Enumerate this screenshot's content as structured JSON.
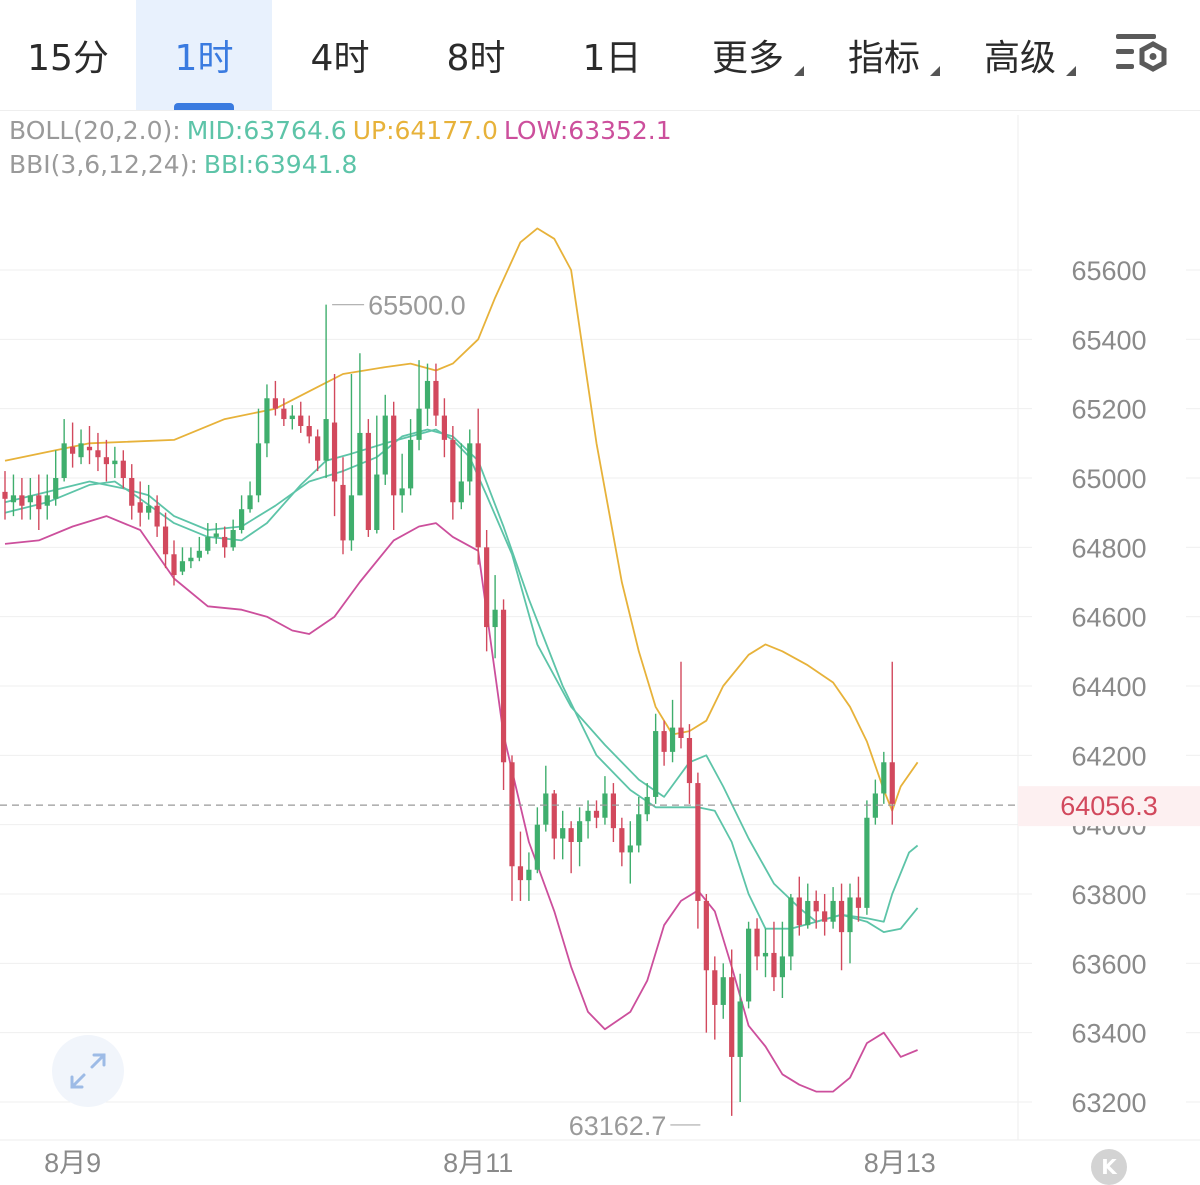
{
  "tabs": [
    {
      "label": "15分"
    },
    {
      "label": "1时"
    },
    {
      "label": "4时"
    },
    {
      "label": "8时"
    },
    {
      "label": "1日"
    },
    {
      "label": "更多"
    },
    {
      "label": "指标"
    },
    {
      "label": "高级"
    }
  ],
  "active_tab": "1时",
  "indicators": {
    "boll": {
      "name": "BOLL(20,2.0):",
      "mid": "MID:63764.6",
      "up": "UP:64177.0",
      "low": "LOW:63352.1"
    },
    "bbi": {
      "name": "BBI(3,6,12,24):",
      "bbi": "BBI:63941.8"
    }
  },
  "colors": {
    "up_candle": "#3fae6d",
    "down_candle": "#d2495d",
    "boll_up": "#e7b23a",
    "boll_mid": "#5dc4a8",
    "boll_low": "#cc4f9c",
    "bbi": "#5dc4a8",
    "active_tab": "#3a7be0",
    "price_line": "#999999"
  },
  "icons": {
    "settings": "settings-gear-icon",
    "expand": "expand-arrows-icon",
    "scroll_back": "scroll-left-icon"
  },
  "chart_data": {
    "type": "candlestick",
    "y_ticks": [
      63200,
      63400,
      63600,
      63800,
      64000,
      64200,
      64400,
      64600,
      64800,
      65000,
      65200,
      65400,
      65600
    ],
    "y_tick_labels": [
      "63200",
      "63400",
      "63600",
      "63800",
      "64000",
      "64200",
      "64400",
      "64600",
      "64800",
      "65000",
      "65200",
      "65400",
      "65600"
    ],
    "ylim": [
      63060,
      65850
    ],
    "x_labels": [
      {
        "label": "8月9",
        "index": 8
      },
      {
        "label": "8月11",
        "index": 56
      },
      {
        "label": "8月13",
        "index": 104
      }
    ],
    "current_price": 64056.3,
    "current_price_label": "64056.3",
    "high_marker": {
      "label": "65500.0",
      "value": 65500,
      "index": 38
    },
    "low_marker": {
      "label": "63162.7",
      "value": 63162.7,
      "index": 83
    },
    "candles": [
      [
        64960,
        64940,
        65020,
        64880
      ],
      [
        64930,
        64950,
        65010,
        64890
      ],
      [
        64950,
        64920,
        65000,
        64880
      ],
      [
        64930,
        64950,
        65000,
        64880
      ],
      [
        64950,
        64910,
        65010,
        64850
      ],
      [
        64920,
        64950,
        65010,
        64880
      ],
      [
        64940,
        65000,
        65080,
        64920
      ],
      [
        65000,
        65100,
        65170,
        64990
      ],
      [
        65090,
        65070,
        65160,
        65030
      ],
      [
        65060,
        65100,
        65140,
        65040
      ],
      [
        65090,
        65080,
        65150,
        65040
      ],
      [
        65080,
        65060,
        65130,
        65020
      ],
      [
        65060,
        65040,
        65110,
        64990
      ],
      [
        65040,
        65050,
        65090,
        65000
      ],
      [
        65050,
        65000,
        65080,
        64970
      ],
      [
        65000,
        64920,
        65040,
        64880
      ],
      [
        64930,
        64900,
        64990,
        64860
      ],
      [
        64900,
        64920,
        64980,
        64880
      ],
      [
        64920,
        64860,
        64950,
        64830
      ],
      [
        64860,
        64780,
        64900,
        64740
      ],
      [
        64780,
        64720,
        64820,
        64690
      ],
      [
        64730,
        64760,
        64800,
        64720
      ],
      [
        64760,
        64770,
        64800,
        64740
      ],
      [
        64770,
        64790,
        64830,
        64760
      ],
      [
        64790,
        64830,
        64870,
        64780
      ],
      [
        64830,
        64840,
        64870,
        64810
      ],
      [
        64830,
        64800,
        64860,
        64770
      ],
      [
        64800,
        64850,
        64880,
        64790
      ],
      [
        64850,
        64910,
        64950,
        64840
      ],
      [
        64910,
        64950,
        64990,
        64900
      ],
      [
        64950,
        65100,
        65200,
        64930
      ],
      [
        65100,
        65230,
        65270,
        65060
      ],
      [
        65230,
        65200,
        65280,
        65180
      ],
      [
        65200,
        65170,
        65230,
        65150
      ],
      [
        65170,
        65180,
        65210,
        65140
      ],
      [
        65180,
        65150,
        65220,
        65130
      ],
      [
        65150,
        65120,
        65180,
        65100
      ],
      [
        65120,
        65050,
        65140,
        65020
      ],
      [
        65050,
        65170,
        65500,
        65000
      ],
      [
        65160,
        64990,
        65300,
        64890
      ],
      [
        64980,
        64820,
        65060,
        64780
      ],
      [
        64820,
        64950,
        65300,
        64790
      ],
      [
        64950,
        65130,
        65360,
        64950
      ],
      [
        65130,
        64850,
        65170,
        64830
      ],
      [
        64850,
        65010,
        65180,
        64840
      ],
      [
        65010,
        65180,
        65240,
        64980
      ],
      [
        65180,
        64950,
        65220,
        64850
      ],
      [
        64950,
        64970,
        65070,
        64900
      ],
      [
        64970,
        65110,
        65170,
        64950
      ],
      [
        65110,
        65200,
        65340,
        65080
      ],
      [
        65200,
        65280,
        65330,
        65150
      ],
      [
        65280,
        65180,
        65330,
        65150
      ],
      [
        65180,
        65110,
        65230,
        65060
      ],
      [
        65110,
        64930,
        65150,
        64880
      ],
      [
        64930,
        64990,
        65100,
        64910
      ],
      [
        64990,
        65100,
        65140,
        64950
      ],
      [
        65100,
        64800,
        65200,
        64750
      ],
      [
        64800,
        64570,
        64850,
        64500
      ],
      [
        64570,
        64620,
        64720,
        64480
      ],
      [
        64620,
        64180,
        64650,
        64100
      ],
      [
        64180,
        63880,
        64200,
        63780
      ],
      [
        63880,
        63840,
        63980,
        63780
      ],
      [
        63840,
        63870,
        63920,
        63780
      ],
      [
        63870,
        64000,
        64050,
        63860
      ],
      [
        64000,
        64090,
        64170,
        63980
      ],
      [
        64090,
        63960,
        64100,
        63900
      ],
      [
        63960,
        63990,
        64040,
        63900
      ],
      [
        63990,
        63950,
        64010,
        63860
      ],
      [
        63950,
        64010,
        64050,
        63880
      ],
      [
        64010,
        64040,
        64070,
        63960
      ],
      [
        64040,
        64020,
        64070,
        63990
      ],
      [
        64020,
        64090,
        64140,
        64000
      ],
      [
        64090,
        63990,
        64120,
        63950
      ],
      [
        63990,
        63920,
        64020,
        63880
      ],
      [
        63920,
        63940,
        64010,
        63830
      ],
      [
        63940,
        64030,
        64080,
        63920
      ],
      [
        64030,
        64080,
        64120,
        64010
      ],
      [
        64080,
        64270,
        64320,
        64060
      ],
      [
        64270,
        64210,
        64300,
        64170
      ],
      [
        64210,
        64280,
        64360,
        64180
      ],
      [
        64280,
        64250,
        64470,
        64220
      ],
      [
        64250,
        64120,
        64290,
        64060
      ],
      [
        64120,
        63780,
        64150,
        63700
      ],
      [
        63780,
        63580,
        63800,
        63400
      ],
      [
        63580,
        63480,
        63620,
        63380
      ],
      [
        63480,
        63560,
        63600,
        63440
      ],
      [
        63560,
        63330,
        63640,
        63160
      ],
      [
        63330,
        63490,
        63570,
        63200
      ],
      [
        63490,
        63700,
        63720,
        63470
      ],
      [
        63700,
        63620,
        63730,
        63580
      ],
      [
        63620,
        63630,
        63700,
        63560
      ],
      [
        63630,
        63560,
        63720,
        63520
      ],
      [
        63560,
        63620,
        63720,
        63500
      ],
      [
        63620,
        63790,
        63800,
        63580
      ],
      [
        63790,
        63710,
        63850,
        63680
      ],
      [
        63710,
        63780,
        63830,
        63700
      ],
      [
        63780,
        63750,
        63810,
        63700
      ],
      [
        63750,
        63720,
        63800,
        63680
      ],
      [
        63720,
        63780,
        63820,
        63700
      ],
      [
        63780,
        63690,
        63830,
        63580
      ],
      [
        63690,
        63790,
        63830,
        63600
      ],
      [
        63790,
        63760,
        63850,
        63720
      ],
      [
        63760,
        64020,
        64070,
        63740
      ],
      [
        64020,
        64090,
        64130,
        64000
      ],
      [
        64090,
        64180,
        64210,
        64060
      ],
      [
        64180,
        64060,
        64470,
        64000
      ]
    ],
    "series": [
      {
        "name": "UP",
        "points": [
          [
            0,
            65050
          ],
          [
            10,
            65100
          ],
          [
            20,
            65110
          ],
          [
            26,
            65170
          ],
          [
            32,
            65200
          ],
          [
            36,
            65250
          ],
          [
            40,
            65300
          ],
          [
            45,
            65320
          ],
          [
            48,
            65330
          ],
          [
            51,
            65310
          ],
          [
            53,
            65330
          ],
          [
            56,
            65400
          ],
          [
            58,
            65520
          ],
          [
            61,
            65680
          ],
          [
            63,
            65720
          ],
          [
            65,
            65690
          ],
          [
            67,
            65600
          ],
          [
            70,
            65100
          ],
          [
            73,
            64700
          ],
          [
            75,
            64500
          ],
          [
            77,
            64340
          ],
          [
            79,
            64260
          ],
          [
            81,
            64270
          ],
          [
            83,
            64300
          ],
          [
            85,
            64400
          ],
          [
            88,
            64490
          ],
          [
            90,
            64520
          ],
          [
            92,
            64500
          ],
          [
            95,
            64460
          ],
          [
            98,
            64410
          ],
          [
            100,
            64340
          ],
          [
            102,
            64240
          ],
          [
            104,
            64100
          ],
          [
            105,
            64040
          ],
          [
            106,
            64110
          ],
          [
            108,
            64180
          ]
        ]
      },
      {
        "name": "MID",
        "points": [
          [
            0,
            64930
          ],
          [
            10,
            64990
          ],
          [
            14,
            64970
          ],
          [
            17,
            64950
          ],
          [
            20,
            64890
          ],
          [
            24,
            64850
          ],
          [
            28,
            64860
          ],
          [
            32,
            64920
          ],
          [
            36,
            64990
          ],
          [
            40,
            65020
          ],
          [
            44,
            65060
          ],
          [
            47,
            65120
          ],
          [
            50,
            65140
          ],
          [
            53,
            65120
          ],
          [
            56,
            65050
          ],
          [
            59,
            64860
          ],
          [
            62,
            64650
          ],
          [
            66,
            64400
          ],
          [
            70,
            64200
          ],
          [
            74,
            64100
          ],
          [
            77,
            64050
          ],
          [
            79,
            64050
          ],
          [
            82,
            64050
          ],
          [
            84,
            64040
          ],
          [
            86,
            63950
          ],
          [
            88,
            63800
          ],
          [
            90,
            63700
          ],
          [
            93,
            63700
          ],
          [
            96,
            63720
          ],
          [
            99,
            63740
          ],
          [
            102,
            63720
          ],
          [
            104,
            63690
          ],
          [
            106,
            63700
          ],
          [
            108,
            63760
          ]
        ]
      },
      {
        "name": "LOW",
        "points": [
          [
            0,
            64810
          ],
          [
            4,
            64820
          ],
          [
            8,
            64860
          ],
          [
            12,
            64890
          ],
          [
            16,
            64850
          ],
          [
            20,
            64710
          ],
          [
            24,
            64630
          ],
          [
            28,
            64620
          ],
          [
            31,
            64600
          ],
          [
            34,
            64560
          ],
          [
            36,
            64550
          ],
          [
            39,
            64600
          ],
          [
            42,
            64700
          ],
          [
            46,
            64820
          ],
          [
            49,
            64860
          ],
          [
            51,
            64870
          ],
          [
            53,
            64830
          ],
          [
            56,
            64790
          ],
          [
            59,
            64260
          ],
          [
            62,
            63950
          ],
          [
            65,
            63750
          ],
          [
            67,
            63590
          ],
          [
            69,
            63460
          ],
          [
            71,
            63410
          ],
          [
            74,
            63460
          ],
          [
            76,
            63550
          ],
          [
            78,
            63710
          ],
          [
            80,
            63780
          ],
          [
            82,
            63810
          ],
          [
            84,
            63750
          ],
          [
            86,
            63590
          ],
          [
            88,
            63420
          ],
          [
            90,
            63360
          ],
          [
            92,
            63280
          ],
          [
            94,
            63250
          ],
          [
            96,
            63230
          ],
          [
            98,
            63230
          ],
          [
            100,
            63270
          ],
          [
            102,
            63370
          ],
          [
            104,
            63400
          ],
          [
            106,
            63330
          ],
          [
            108,
            63350
          ]
        ]
      },
      {
        "name": "BBI",
        "points": [
          [
            0,
            64900
          ],
          [
            5,
            64930
          ],
          [
            10,
            64980
          ],
          [
            13,
            64990
          ],
          [
            16,
            64940
          ],
          [
            20,
            64870
          ],
          [
            24,
            64830
          ],
          [
            28,
            64820
          ],
          [
            31,
            64870
          ],
          [
            35,
            64980
          ],
          [
            38,
            65050
          ],
          [
            41,
            65070
          ],
          [
            45,
            65100
          ],
          [
            48,
            65120
          ],
          [
            51,
            65140
          ],
          [
            53,
            65110
          ],
          [
            55,
            65060
          ],
          [
            57,
            64950
          ],
          [
            60,
            64780
          ],
          [
            63,
            64520
          ],
          [
            67,
            64340
          ],
          [
            71,
            64230
          ],
          [
            75,
            64130
          ],
          [
            78,
            64080
          ],
          [
            81,
            64180
          ],
          [
            83,
            64200
          ],
          [
            85,
            64110
          ],
          [
            88,
            63960
          ],
          [
            91,
            63830
          ],
          [
            94,
            63760
          ],
          [
            96,
            63720
          ],
          [
            99,
            63740
          ],
          [
            102,
            63730
          ],
          [
            104,
            63720
          ],
          [
            105,
            63800
          ],
          [
            107,
            63920
          ],
          [
            108,
            63940
          ]
        ]
      }
    ]
  }
}
